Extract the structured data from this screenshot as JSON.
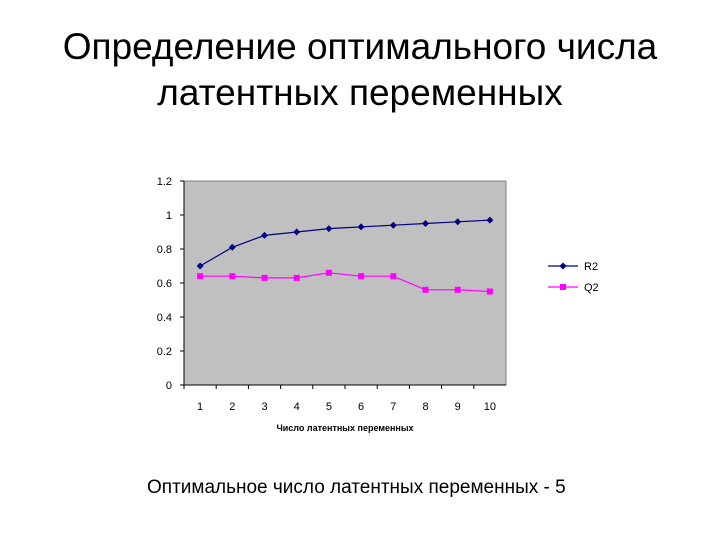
{
  "slide": {
    "title_line1": "Определение оптимального числа",
    "title_line2": "латентных переменных",
    "caption": "Оптимальное число латентных переменных - 5"
  },
  "chart_data": {
    "type": "line",
    "categories": [
      "1",
      "2",
      "3",
      "4",
      "5",
      "6",
      "7",
      "8",
      "9",
      "10"
    ],
    "series": [
      {
        "name": "R2",
        "color": "#000080",
        "marker": "diamond",
        "values": [
          0.7,
          0.81,
          0.88,
          0.9,
          0.92,
          0.93,
          0.94,
          0.95,
          0.96,
          0.97
        ]
      },
      {
        "name": "Q2",
        "color": "#ff00ff",
        "marker": "square",
        "values": [
          0.64,
          0.64,
          0.63,
          0.63,
          0.66,
          0.64,
          0.64,
          0.56,
          0.56,
          0.55
        ]
      }
    ],
    "xlabel": "Число латентных переменных",
    "ylabel": "",
    "ylim": [
      0,
      1.2
    ],
    "yticks": [
      "0",
      "0.2",
      "0.4",
      "0.6",
      "0.8",
      "1",
      "1.2"
    ],
    "plot_background": "#c0c0c0",
    "grid": false,
    "legend_position": "right"
  }
}
